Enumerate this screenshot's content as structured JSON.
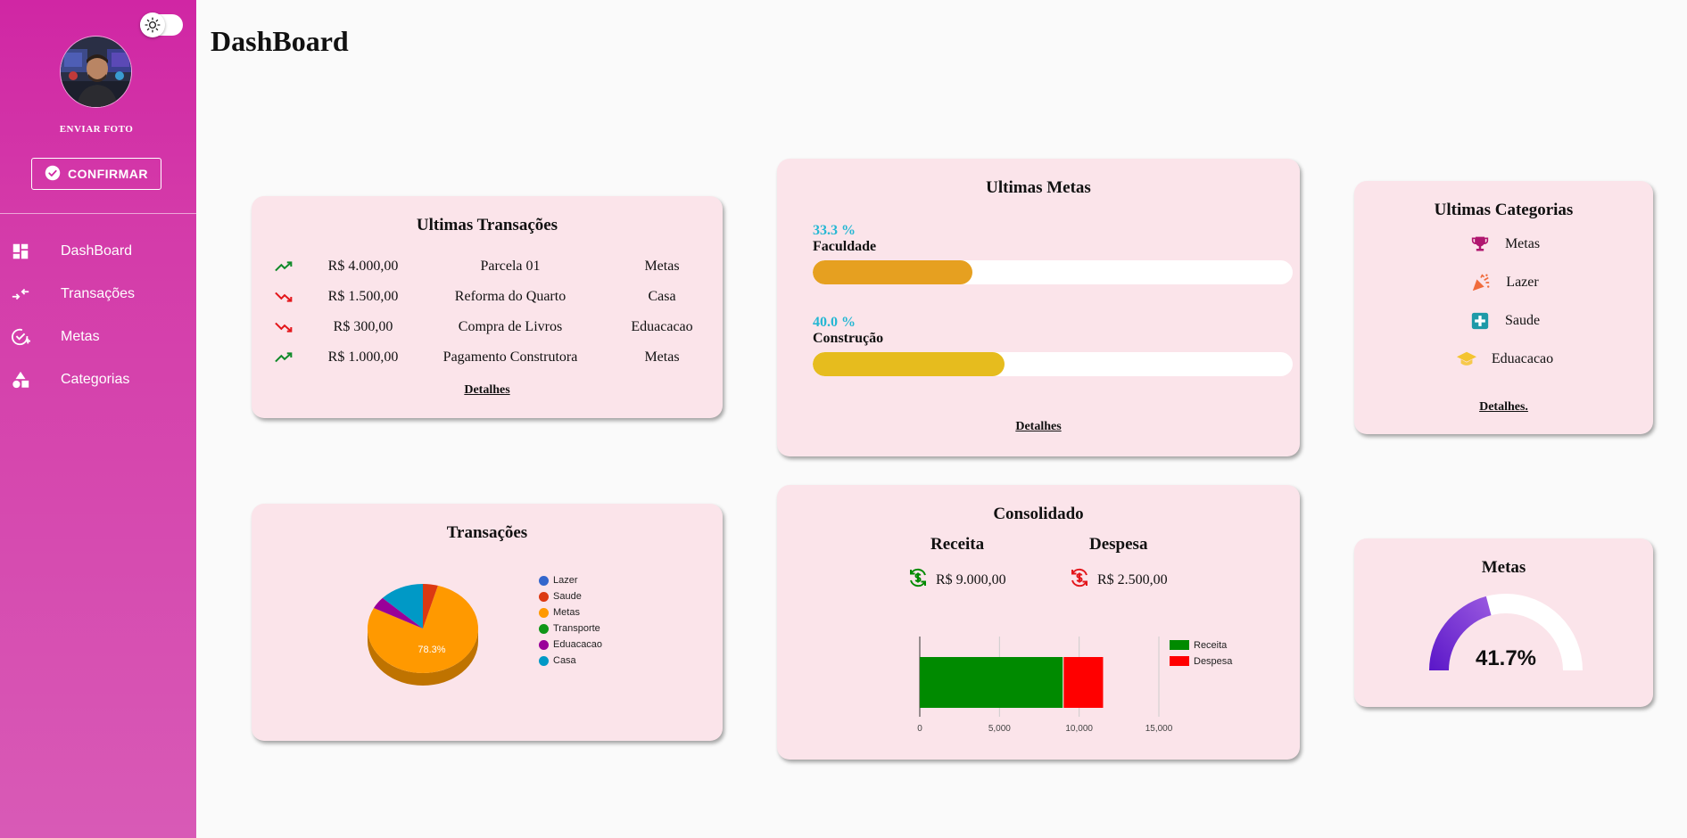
{
  "sidebar": {
    "send_photo_label": "ENVIAR FOTO",
    "confirm_label": "CONFIRMAR",
    "nav": [
      {
        "label": "DashBoard",
        "icon": "dashboard-icon"
      },
      {
        "label": "Transações",
        "icon": "transactions-icon"
      },
      {
        "label": "Metas",
        "icon": "goals-icon"
      },
      {
        "label": "Categorias",
        "icon": "categories-icon"
      }
    ]
  },
  "header": {
    "title": "DashBoard"
  },
  "transactions_card": {
    "title": "Ultimas Transações",
    "rows": [
      {
        "direction": "up",
        "amount": "R$ 4.000,00",
        "description": "Parcela 01",
        "category": "Metas"
      },
      {
        "direction": "down",
        "amount": "R$ 1.500,00",
        "description": "Reforma do Quarto",
        "category": "Casa"
      },
      {
        "direction": "down",
        "amount": "R$ 300,00",
        "description": "Compra de Livros",
        "category": "Eduacacao"
      },
      {
        "direction": "up",
        "amount": "R$ 1.000,00",
        "description": "Pagamento Construtora",
        "category": "Metas"
      }
    ],
    "details_label": "Detalhes"
  },
  "goals_card": {
    "title": "Ultimas Metas",
    "goals": [
      {
        "percent_label": "33.3 %",
        "name": "Faculdade",
        "progress": 0.333,
        "color": "#e6a020"
      },
      {
        "percent_label": "40.0 %",
        "name": "Construção",
        "progress": 0.4,
        "color": "#e6bc1e"
      }
    ],
    "details_label": "Detalhes"
  },
  "categories_card": {
    "title": "Ultimas Categorias",
    "items": [
      {
        "name": "Metas",
        "icon": "trophy-icon",
        "color": "#b0166f"
      },
      {
        "name": "Lazer",
        "icon": "party-popper-icon",
        "color": "#f06b3c"
      },
      {
        "name": "Saude",
        "icon": "medical-cross-icon",
        "color": "#1e9aa8"
      },
      {
        "name": "Eduacacao",
        "icon": "graduation-cap-icon",
        "color": "#f4c430"
      }
    ],
    "details_label": "Detalhes."
  },
  "pie_card": {
    "title": "Transações",
    "slice_label": "78.3%"
  },
  "consolidated_card": {
    "title": "Consolidado",
    "income_label": "Receita",
    "expense_label": "Despesa",
    "income_value": "R$ 9.000,00",
    "expense_value": "R$ 2.500,00",
    "income_color": "#008a00",
    "expense_color": "#ff0000"
  },
  "gauge_card": {
    "title": "Metas",
    "value_label": "41.7%",
    "progress": 0.417
  },
  "chart_data": [
    {
      "type": "pie",
      "categories": [
        "Lazer",
        "Saude",
        "Metas",
        "Transporte",
        "Eduacacao",
        "Casa"
      ],
      "values": [
        0,
        4.4,
        78.3,
        0,
        4.4,
        13.0
      ],
      "colors": [
        "#3366cc",
        "#dc3912",
        "#ff9900",
        "#109618",
        "#990099",
        "#0099c6"
      ],
      "legend": "right",
      "data_labels": [
        "78.3%"
      ]
    },
    {
      "type": "bar",
      "orientation": "horizontal",
      "stacked": true,
      "categories": [
        ""
      ],
      "series": [
        {
          "name": "Receita",
          "values": [
            9000
          ],
          "color": "#008a00"
        },
        {
          "name": "Despesa",
          "values": [
            2500
          ],
          "color": "#ff0000"
        }
      ],
      "xlim": [
        0,
        15000
      ],
      "xticks": [
        "0",
        "5,000",
        "10,000",
        "15,000"
      ],
      "grid": true,
      "legend": "right"
    }
  ]
}
